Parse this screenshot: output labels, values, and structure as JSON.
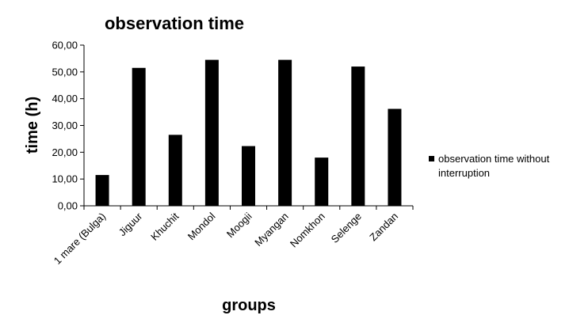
{
  "chart_data": {
    "type": "bar",
    "title": "observation time",
    "xlabel": "groups",
    "ylabel": "time (h)",
    "categories": [
      "1 mare (Bulga)",
      "Jiguur",
      "Khuchit",
      "Mondol",
      "Moogii",
      "Myangan",
      "Nomkhon",
      "Selenge",
      "Zandan"
    ],
    "series": [
      {
        "name": "observation time without interruption",
        "values": [
          11.5,
          51.5,
          26.5,
          54.5,
          22.3,
          54.5,
          18.0,
          52.0,
          36.2
        ],
        "color": "#000000"
      }
    ],
    "ylim": [
      0,
      60
    ],
    "yticks": [
      "0,00",
      "10,00",
      "20,00",
      "30,00",
      "40,00",
      "50,00",
      "60,00"
    ],
    "grid": false,
    "legend_position": "right"
  }
}
